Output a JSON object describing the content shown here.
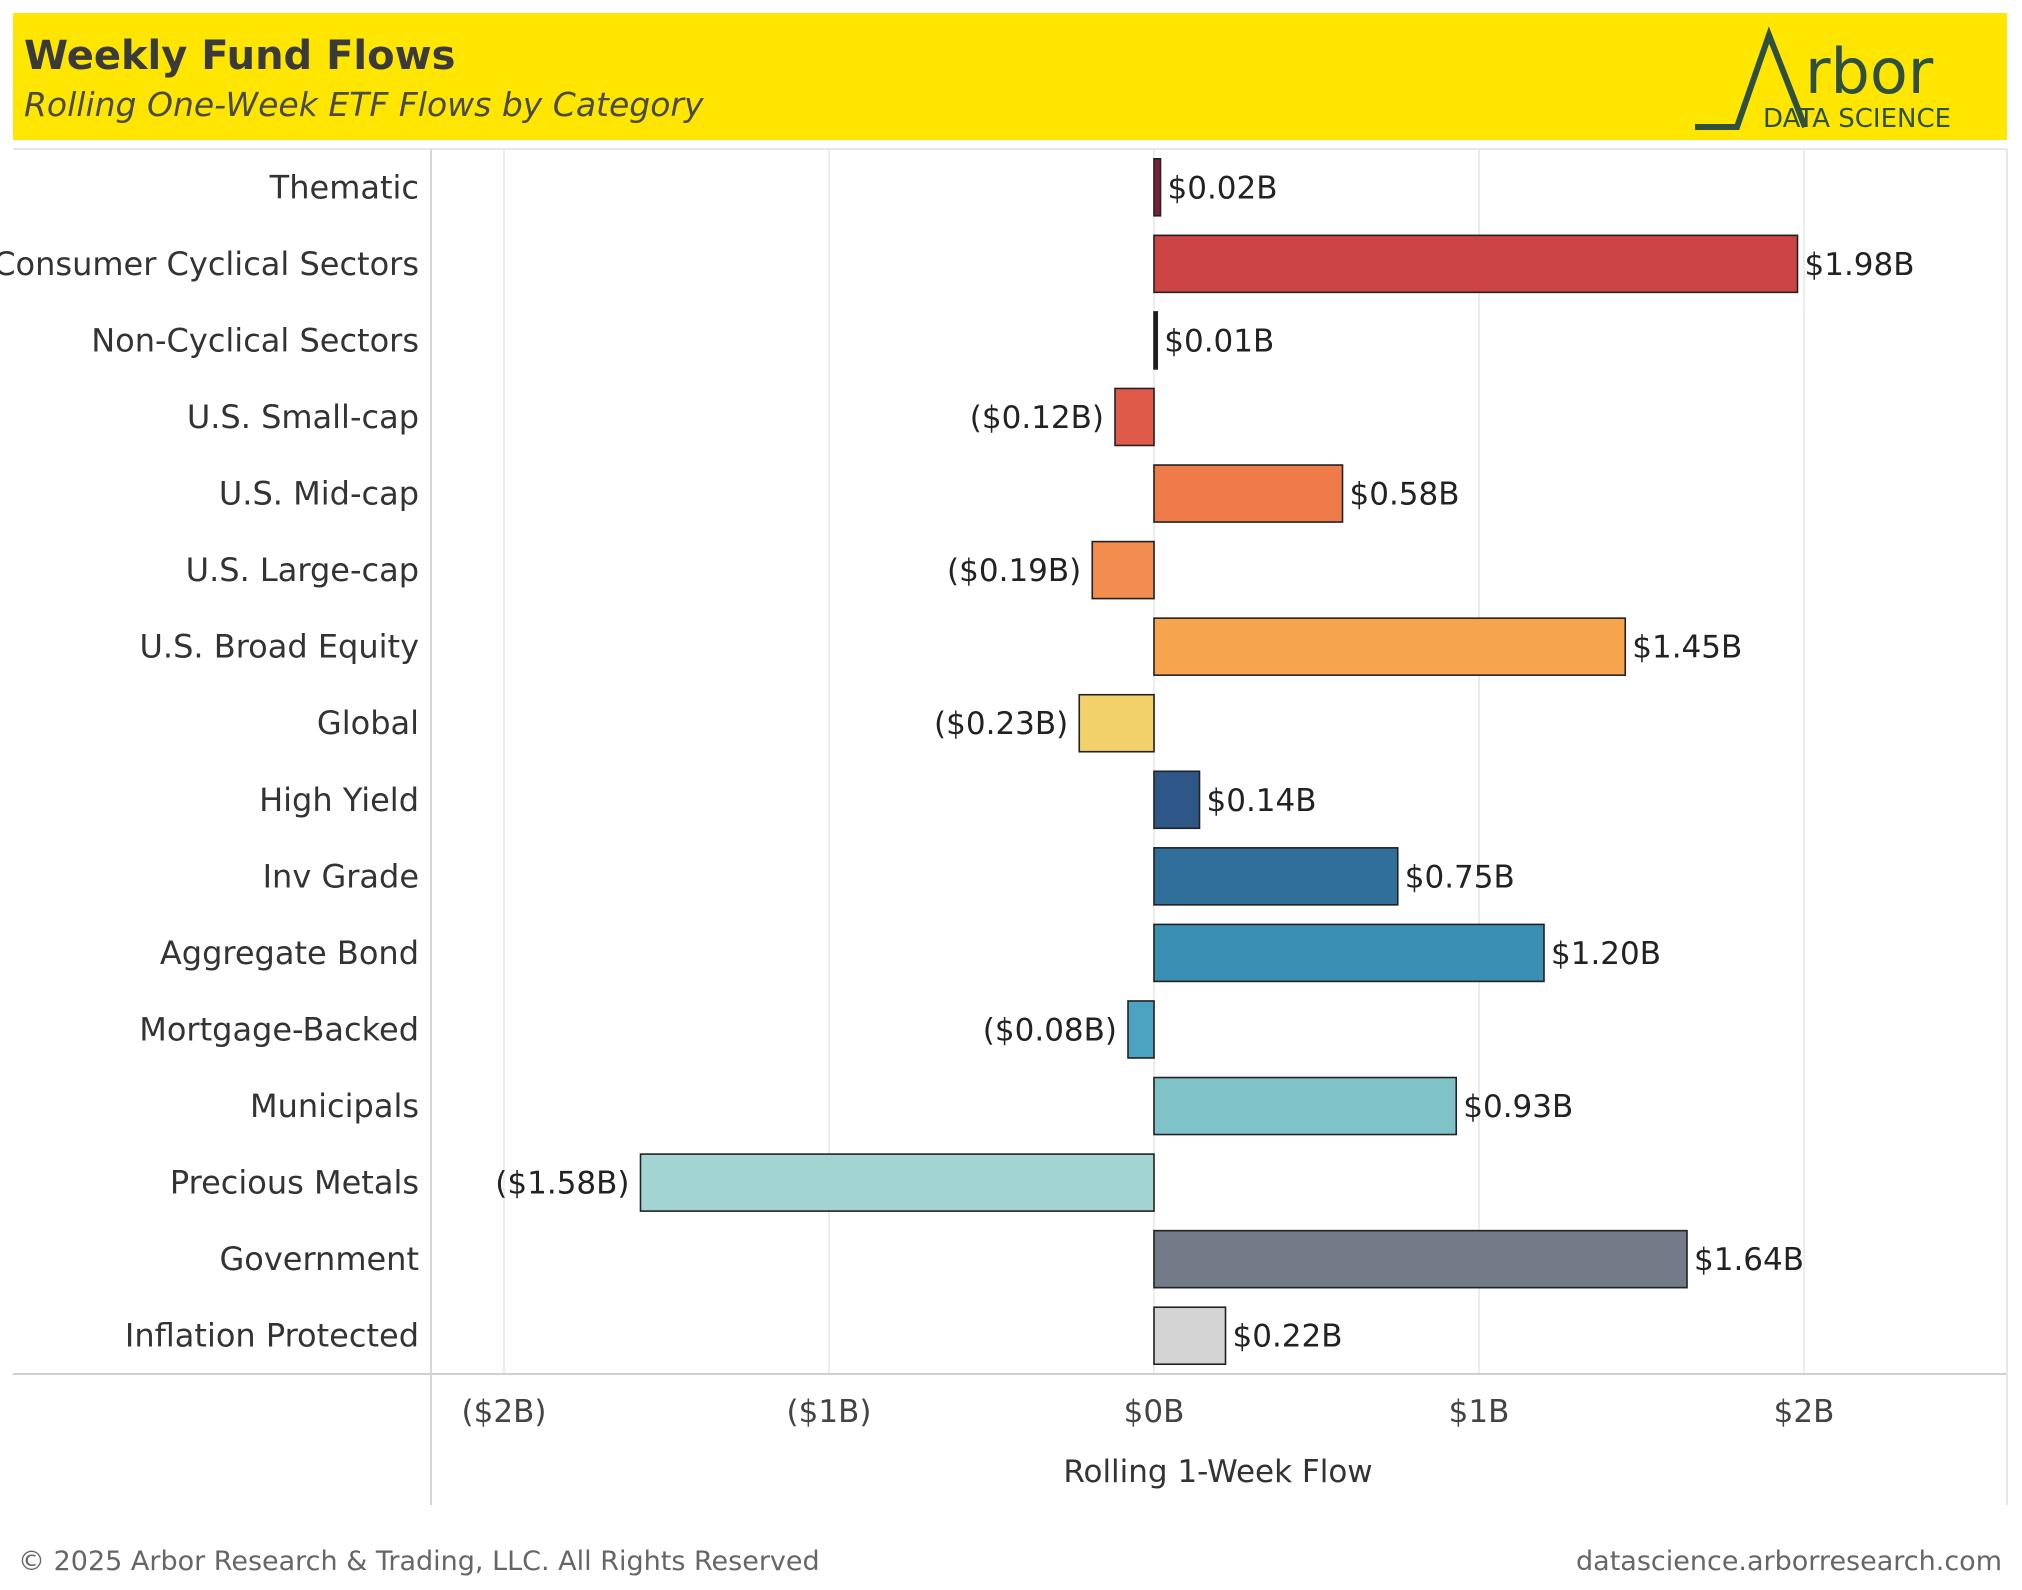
{
  "header": {
    "title": "Weekly Fund Flows",
    "subtitle": "Rolling One-Week ETF Flows by Category",
    "logo_wordmark": "Arbor",
    "logo_tagline": "DATA SCIENCE",
    "background": "#ffe600",
    "logo_color": "#2f4f3f"
  },
  "chart_data": {
    "type": "bar",
    "orientation": "horizontal",
    "title": "",
    "xlabel": "Rolling 1-Week Flow",
    "ylabel": "",
    "xlim": [
      -2.2,
      2.6
    ],
    "x_ticks": [
      -2,
      -1,
      0,
      1,
      2
    ],
    "x_tick_labels": [
      "($2B)",
      "($1B)",
      "$0B",
      "$1B",
      "$2B"
    ],
    "grid": "vertical",
    "categories": [
      "Thematic",
      "Consumer Cyclical Sectors",
      "Non-Cyclical Sectors",
      "U.S. Small-cap",
      "U.S. Mid-cap",
      "U.S. Large-cap",
      "U.S. Broad Equity",
      "Global",
      "High Yield",
      "Inv Grade",
      "Aggregate Bond",
      "Mortgage-Backed",
      "Municipals",
      "Precious Metals",
      "Government",
      "Inflation Protected"
    ],
    "values": [
      0.02,
      1.98,
      0.01,
      -0.12,
      0.58,
      -0.19,
      1.45,
      -0.23,
      0.14,
      0.75,
      1.2,
      -0.08,
      0.93,
      -1.58,
      1.64,
      0.22
    ],
    "value_labels": [
      "$0.02B",
      "$1.98B",
      "$0.01B",
      "($0.12B)",
      "$0.58B",
      "($0.19B)",
      "$1.45B",
      "($0.23B)",
      "$0.14B",
      "$0.75B",
      "$1.20B",
      "($0.08B)",
      "$0.93B",
      "($1.58B)",
      "$1.64B",
      "$0.22B"
    ],
    "colors": [
      "#7a1f3a",
      "#cc4444",
      "#1a1a1a",
      "#e05a4a",
      "#ef7b4a",
      "#f28c4f",
      "#f7a44f",
      "#f2d06a",
      "#2e5788",
      "#2f6f9a",
      "#3a8fb5",
      "#4aa3c0",
      "#7fc3c9",
      "#a2d5d2",
      "#737b89",
      "#d4d4d4"
    ]
  },
  "footer": {
    "copyright": "© 2025 Arbor Research & Trading, LLC. All Rights Reserved",
    "website": "datascience.arborresearch.com"
  }
}
